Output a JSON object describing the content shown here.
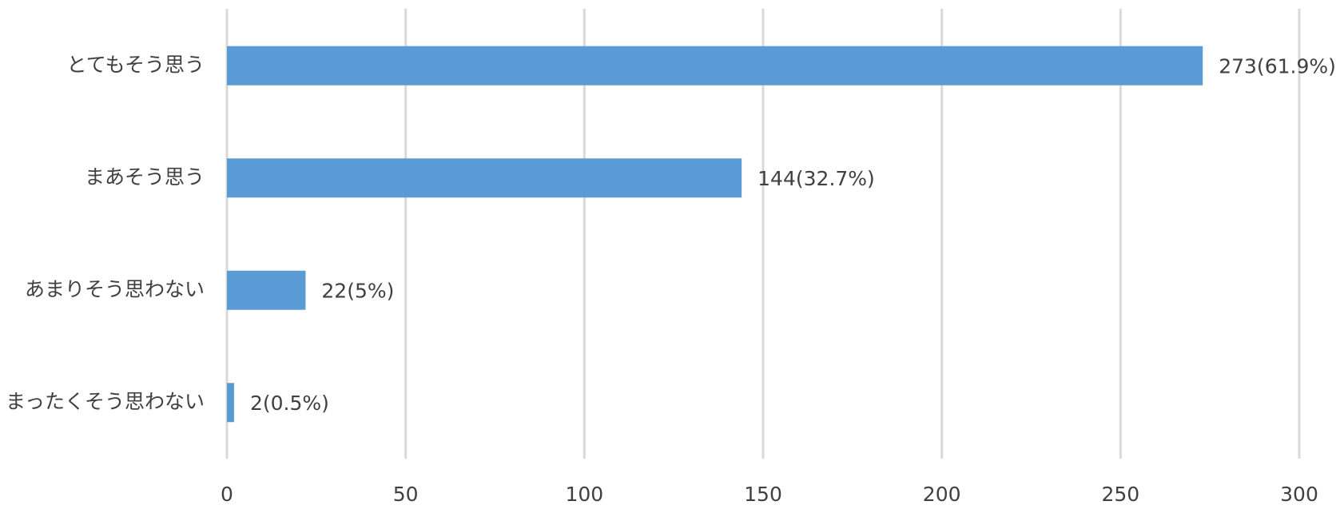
{
  "chart_data": {
    "type": "bar",
    "orientation": "horizontal",
    "categories": [
      "とてもそう思う",
      "まあそう思う",
      "あまりそう思わない",
      "まったくそう思わない"
    ],
    "values": [
      273,
      144,
      22,
      2
    ],
    "value_labels": [
      "273(61.9%)",
      "144(32.7%)",
      "22(5%)",
      "2(0.5%)"
    ],
    "color": "#5b9bd5",
    "xlim": [
      0,
      300
    ],
    "xticks": [
      0,
      50,
      100,
      150,
      200,
      250,
      300
    ],
    "grid": true
  }
}
